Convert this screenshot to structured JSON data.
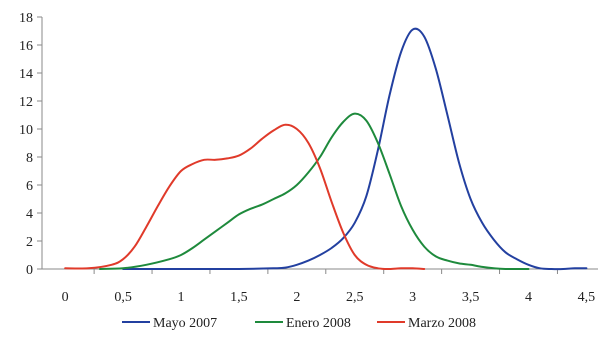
{
  "chart_data": {
    "type": "line",
    "title": "",
    "xlabel": "",
    "ylabel": "",
    "xlim": [
      -0.2,
      4.6
    ],
    "ylim": [
      0,
      18
    ],
    "x_ticks": [
      0,
      0.5,
      1,
      1.5,
      2,
      2.5,
      3,
      3.5,
      4,
      4.5
    ],
    "x_tick_labels": [
      "0",
      "0,5",
      "1",
      "1,5",
      "2",
      "2,5",
      "3",
      "3,5",
      "4",
      "4,5"
    ],
    "y_ticks": [
      0,
      2,
      4,
      6,
      8,
      10,
      12,
      14,
      16,
      18
    ],
    "y_tick_labels": [
      "0",
      "2",
      "4",
      "6",
      "8",
      "10",
      "12",
      "14",
      "16",
      "18"
    ],
    "grid": false,
    "legend_position": "bottom",
    "series": [
      {
        "name": "Mayo 2007",
        "color": "#2340a0",
        "points": [
          [
            0.5,
            0
          ],
          [
            1.0,
            0
          ],
          [
            1.5,
            0
          ],
          [
            1.8,
            0.05
          ],
          [
            1.9,
            0.1
          ],
          [
            2.0,
            0.3
          ],
          [
            2.1,
            0.6
          ],
          [
            2.2,
            1.0
          ],
          [
            2.3,
            1.5
          ],
          [
            2.4,
            2.2
          ],
          [
            2.5,
            3.3
          ],
          [
            2.6,
            5.2
          ],
          [
            2.7,
            8.5
          ],
          [
            2.8,
            12.4
          ],
          [
            2.9,
            15.5
          ],
          [
            3.0,
            17.1
          ],
          [
            3.1,
            16.6
          ],
          [
            3.2,
            14.3
          ],
          [
            3.3,
            11.0
          ],
          [
            3.4,
            7.6
          ],
          [
            3.5,
            5.0
          ],
          [
            3.6,
            3.3
          ],
          [
            3.7,
            2.1
          ],
          [
            3.8,
            1.2
          ],
          [
            3.9,
            0.7
          ],
          [
            4.0,
            0.3
          ],
          [
            4.1,
            0.05
          ],
          [
            4.2,
            0
          ],
          [
            4.3,
            0
          ],
          [
            4.4,
            0.05
          ],
          [
            4.5,
            0.05
          ]
        ]
      },
      {
        "name": "Enero 2008",
        "color": "#1e8a3c",
        "points": [
          [
            0.3,
            0
          ],
          [
            0.5,
            0.05
          ],
          [
            0.7,
            0.3
          ],
          [
            0.9,
            0.7
          ],
          [
            1.0,
            1.0
          ],
          [
            1.1,
            1.5
          ],
          [
            1.2,
            2.1
          ],
          [
            1.3,
            2.7
          ],
          [
            1.4,
            3.3
          ],
          [
            1.5,
            3.9
          ],
          [
            1.6,
            4.3
          ],
          [
            1.7,
            4.6
          ],
          [
            1.8,
            5.0
          ],
          [
            1.9,
            5.4
          ],
          [
            2.0,
            6.0
          ],
          [
            2.1,
            6.9
          ],
          [
            2.2,
            8.0
          ],
          [
            2.3,
            9.4
          ],
          [
            2.4,
            10.5
          ],
          [
            2.5,
            11.1
          ],
          [
            2.6,
            10.6
          ],
          [
            2.7,
            9.0
          ],
          [
            2.8,
            6.8
          ],
          [
            2.9,
            4.5
          ],
          [
            3.0,
            2.8
          ],
          [
            3.1,
            1.6
          ],
          [
            3.2,
            0.9
          ],
          [
            3.3,
            0.6
          ],
          [
            3.4,
            0.4
          ],
          [
            3.5,
            0.3
          ],
          [
            3.6,
            0.15
          ],
          [
            3.7,
            0.05
          ],
          [
            3.8,
            0
          ],
          [
            4.0,
            0
          ]
        ]
      },
      {
        "name": "Marzo 2008",
        "color": "#e03a2a",
        "points": [
          [
            0,
            0.05
          ],
          [
            0.2,
            0.05
          ],
          [
            0.4,
            0.3
          ],
          [
            0.5,
            0.7
          ],
          [
            0.6,
            1.6
          ],
          [
            0.7,
            3.0
          ],
          [
            0.8,
            4.5
          ],
          [
            0.9,
            5.9
          ],
          [
            1.0,
            7.0
          ],
          [
            1.1,
            7.5
          ],
          [
            1.2,
            7.8
          ],
          [
            1.3,
            7.8
          ],
          [
            1.4,
            7.9
          ],
          [
            1.5,
            8.1
          ],
          [
            1.6,
            8.6
          ],
          [
            1.7,
            9.3
          ],
          [
            1.8,
            9.9
          ],
          [
            1.9,
            10.3
          ],
          [
            2.0,
            10.0
          ],
          [
            2.1,
            9.0
          ],
          [
            2.2,
            7.2
          ],
          [
            2.3,
            4.8
          ],
          [
            2.4,
            2.6
          ],
          [
            2.5,
            1.0
          ],
          [
            2.6,
            0.3
          ],
          [
            2.7,
            0.05
          ],
          [
            2.8,
            0
          ],
          [
            2.9,
            0.05
          ],
          [
            3.0,
            0.05
          ],
          [
            3.1,
            0
          ]
        ]
      }
    ]
  }
}
